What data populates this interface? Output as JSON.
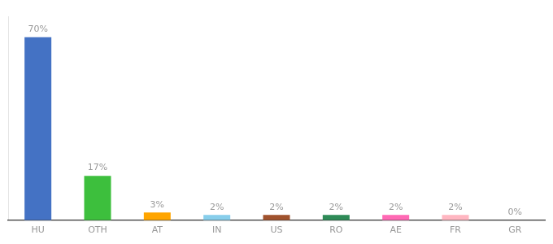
{
  "chart_data": {
    "type": "bar",
    "categories": [
      "HU",
      "OTH",
      "AT",
      "IN",
      "US",
      "RO",
      "AE",
      "FR",
      "GR"
    ],
    "values": [
      70,
      17,
      3,
      2,
      2,
      2,
      2,
      2,
      0
    ],
    "value_labels": [
      "70%",
      "17%",
      "3%",
      "2%",
      "2%",
      "2%",
      "2%",
      "2%",
      "0%"
    ],
    "colors": [
      "#4472C4",
      "#3DBF3D",
      "#FFA500",
      "#87CEEB",
      "#A0522D",
      "#2E8B57",
      "#FF69B4",
      "#FFB6C1",
      "#CCCCCC"
    ],
    "ylim": [
      0,
      78
    ],
    "grid": false,
    "data_labels": true,
    "tick_labels": "x"
  }
}
